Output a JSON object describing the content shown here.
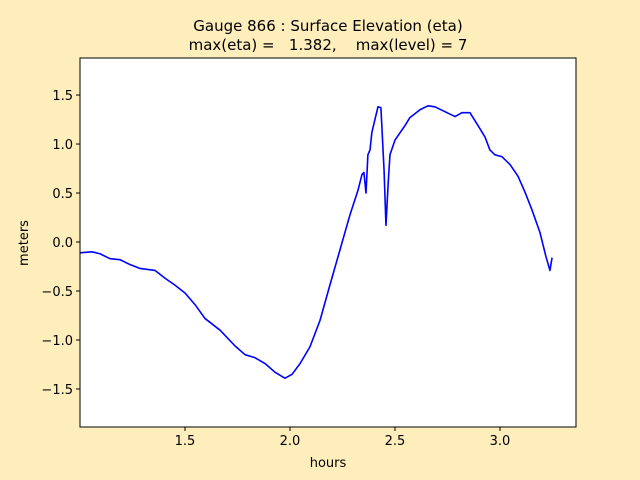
{
  "chart_data": {
    "type": "line",
    "title": "Gauge 866 : Surface Elevation (eta)",
    "subtitle": "max(eta) =   1.382,    max(level) = 7",
    "x_label": "hours",
    "y_label": "meters",
    "xlim": [
      1.0,
      3.362
    ],
    "ylim": [
      -1.888,
      1.878
    ],
    "xticks": [
      {
        "value": 1.5,
        "label": "1.5"
      },
      {
        "value": 2.0,
        "label": "2.0"
      },
      {
        "value": 2.5,
        "label": "2.5"
      },
      {
        "value": 3.0,
        "label": "3.0"
      }
    ],
    "yticks": [
      {
        "value": -1.5,
        "label": "−1.5"
      },
      {
        "value": -1.0,
        "label": "−1.0"
      },
      {
        "value": -0.5,
        "label": "−0.5"
      },
      {
        "value": 0.0,
        "label": "0.0"
      },
      {
        "value": 0.5,
        "label": "0.5"
      },
      {
        "value": 1.0,
        "label": "1.0"
      },
      {
        "value": 1.5,
        "label": "1.5"
      }
    ],
    "grid": false,
    "x": [
      1.0,
      1.057,
      1.095,
      1.143,
      1.19,
      1.238,
      1.286,
      1.357,
      1.405,
      1.452,
      1.5,
      1.548,
      1.595,
      1.667,
      1.738,
      1.786,
      1.833,
      1.881,
      1.929,
      1.976,
      2.01,
      2.048,
      2.095,
      2.143,
      2.19,
      2.238,
      2.286,
      2.324,
      2.343,
      2.352,
      2.362,
      2.371,
      2.381,
      2.39,
      2.419,
      2.433,
      2.448,
      2.457,
      2.467,
      2.476,
      2.5,
      2.548,
      2.571,
      2.619,
      2.657,
      2.69,
      2.738,
      2.786,
      2.819,
      2.857,
      2.895,
      2.929,
      2.952,
      2.976,
      3.01,
      3.048,
      3.086,
      3.119,
      3.152,
      3.19,
      3.219,
      3.238,
      3.248
    ],
    "series": [
      {
        "color": "#0000ff",
        "values": [
          -0.11,
          -0.1,
          -0.12,
          -0.17,
          -0.18,
          -0.23,
          -0.27,
          -0.29,
          -0.37,
          -0.44,
          -0.52,
          -0.64,
          -0.78,
          -0.9,
          -1.06,
          -1.15,
          -1.18,
          -1.24,
          -1.33,
          -1.39,
          -1.35,
          -1.24,
          -1.07,
          -0.8,
          -0.44,
          -0.08,
          0.28,
          0.53,
          0.69,
          0.71,
          0.5,
          0.89,
          0.94,
          1.12,
          1.38,
          1.37,
          0.73,
          0.17,
          0.58,
          0.89,
          1.04,
          1.19,
          1.27,
          1.35,
          1.39,
          1.38,
          1.33,
          1.28,
          1.32,
          1.32,
          1.19,
          1.07,
          0.94,
          0.89,
          0.87,
          0.79,
          0.67,
          0.51,
          0.33,
          0.1,
          -0.15,
          -0.29,
          -0.16
        ]
      }
    ]
  }
}
